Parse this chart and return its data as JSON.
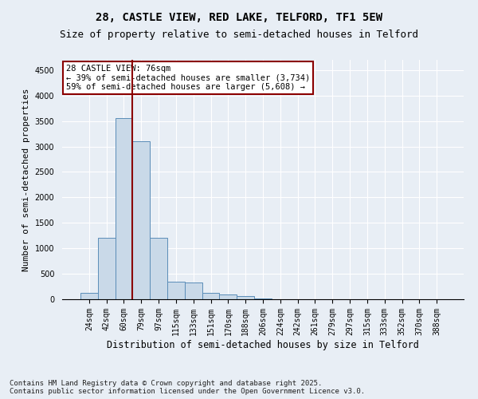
{
  "title1": "28, CASTLE VIEW, RED LAKE, TELFORD, TF1 5EW",
  "title2": "Size of property relative to semi-detached houses in Telford",
  "xlabel": "Distribution of semi-detached houses by size in Telford",
  "ylabel": "Number of semi-detached properties",
  "categories": [
    "24sqm",
    "42sqm",
    "60sqm",
    "79sqm",
    "97sqm",
    "115sqm",
    "133sqm",
    "151sqm",
    "170sqm",
    "188sqm",
    "206sqm",
    "224sqm",
    "242sqm",
    "261sqm",
    "279sqm",
    "297sqm",
    "315sqm",
    "333sqm",
    "352sqm",
    "370sqm",
    "388sqm"
  ],
  "values": [
    120,
    1200,
    3550,
    3100,
    1200,
    350,
    330,
    120,
    90,
    55,
    15,
    0,
    0,
    0,
    0,
    0,
    0,
    0,
    0,
    0,
    0
  ],
  "bar_color": "#c9d9e8",
  "bar_edge_color": "#5b8db8",
  "property_line_x": 2.5,
  "annotation_text_line1": "28 CASTLE VIEW: 76sqm",
  "annotation_text_line2": "← 39% of semi-detached houses are smaller (3,734)",
  "annotation_text_line3": "59% of semi-detached houses are larger (5,608) →",
  "line_color": "#8b0000",
  "annotation_box_edge": "#8b0000",
  "ylim": [
    0,
    4700
  ],
  "yticks": [
    0,
    500,
    1000,
    1500,
    2000,
    2500,
    3000,
    3500,
    4000,
    4500
  ],
  "bg_color": "#e8eef5",
  "plot_bg_color": "#e8eef5",
  "footer_line1": "Contains HM Land Registry data © Crown copyright and database right 2025.",
  "footer_line2": "Contains public sector information licensed under the Open Government Licence v3.0.",
  "title1_fontsize": 10,
  "title2_fontsize": 9,
  "xlabel_fontsize": 8.5,
  "ylabel_fontsize": 8,
  "tick_fontsize": 7,
  "annotation_fontsize": 7.5,
  "footer_fontsize": 6.5
}
